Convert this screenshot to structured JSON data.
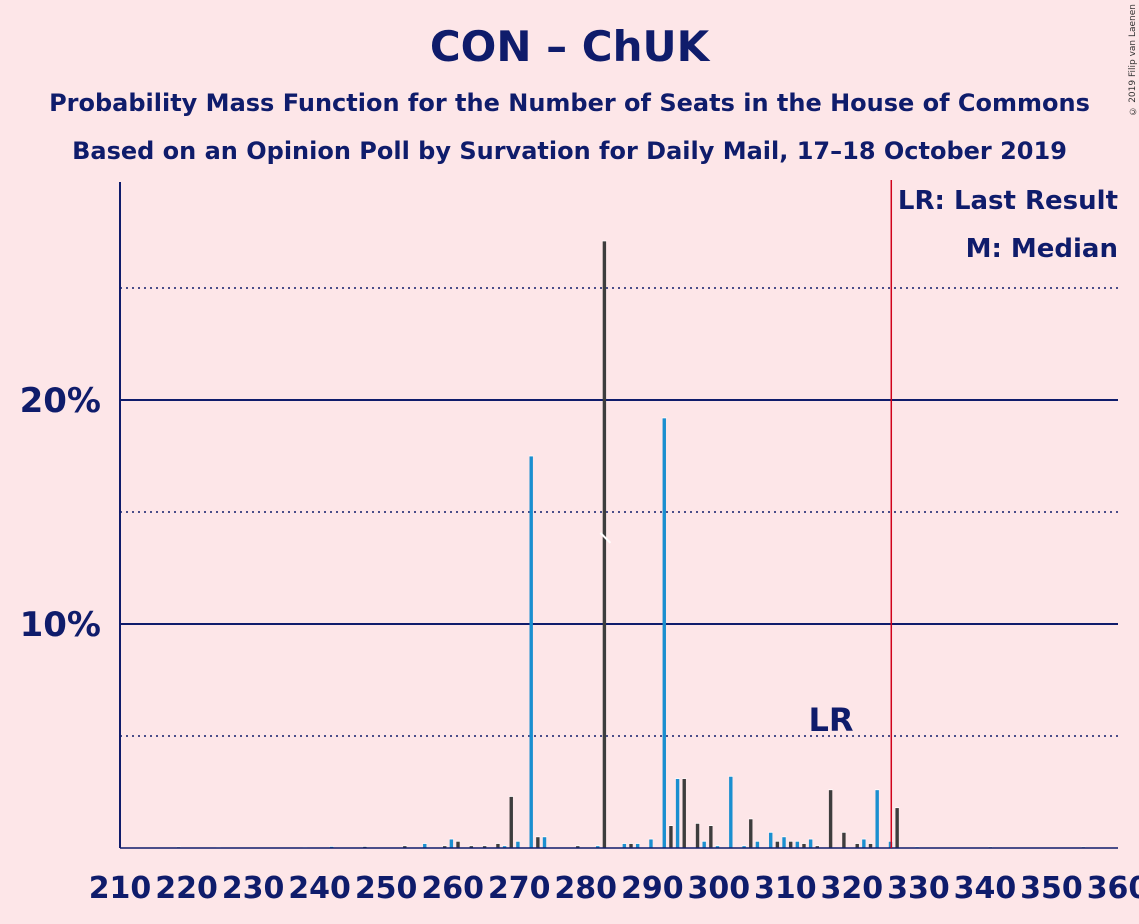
{
  "header": {
    "title": "CON – ChUK",
    "subtitle1": "Probability Mass Function for the Number of Seats in the House of Commons",
    "subtitle2": "Based on an Opinion Poll by Survation for Daily Mail, 17–18 October 2019",
    "copyright": "© 2019 Filip van Laenen"
  },
  "legend": {
    "last_result": "LR: Last Result",
    "median": "M: Median"
  },
  "colors": {
    "background": "#fde6e8",
    "axis": "#0f1c6b",
    "bar_blue": "#1a8fd0",
    "bar_dark": "#3d3d3d",
    "last_result_line": "#d0021b"
  },
  "chart_data": {
    "type": "bar",
    "title": "CON – ChUK",
    "xlabel": "",
    "ylabel": "",
    "xlim": [
      210,
      360
    ],
    "ylim": [
      0,
      30
    ],
    "x_ticks": [
      "210",
      "220",
      "230",
      "240",
      "250",
      "260",
      "270",
      "280",
      "290",
      "300",
      "310",
      "320",
      "330",
      "340",
      "350",
      "360"
    ],
    "y_ticks": [
      "10%",
      "20%"
    ],
    "major_gridlines": [
      10,
      20
    ],
    "minor_gridlines": [
      5,
      15,
      25
    ],
    "median": 283,
    "last_result": 326,
    "last_result_label": "LR",
    "bars": [
      {
        "x": 219,
        "v": 0.05
      },
      {
        "x": 225,
        "v": 0.03
      },
      {
        "x": 238,
        "v": 0.03
      },
      {
        "x": 242,
        "v": 0.07
      },
      {
        "x": 247,
        "v": 0.07
      },
      {
        "x": 253,
        "v": 0.1
      },
      {
        "x": 256,
        "v": 0.2
      },
      {
        "x": 259,
        "v": 0.1
      },
      {
        "x": 260,
        "v": 0.4
      },
      {
        "x": 261,
        "v": 0.3
      },
      {
        "x": 263,
        "v": 0.1
      },
      {
        "x": 265,
        "v": 0.1
      },
      {
        "x": 267,
        "v": 0.2
      },
      {
        "x": 268,
        "v": 0.1
      },
      {
        "x": 269,
        "v": 2.3
      },
      {
        "x": 270,
        "v": 0.3
      },
      {
        "x": 272,
        "v": 17.5
      },
      {
        "x": 273,
        "v": 0.5
      },
      {
        "x": 274,
        "v": 0.5
      },
      {
        "x": 279,
        "v": 0.1
      },
      {
        "x": 282,
        "v": 0.1
      },
      {
        "x": 283,
        "v": 27.1
      },
      {
        "x": 286,
        "v": 0.2
      },
      {
        "x": 287,
        "v": 0.2
      },
      {
        "x": 288,
        "v": 0.2
      },
      {
        "x": 290,
        "v": 0.4
      },
      {
        "x": 292,
        "v": 19.2
      },
      {
        "x": 293,
        "v": 1.0
      },
      {
        "x": 294,
        "v": 3.1
      },
      {
        "x": 295,
        "v": 3.1
      },
      {
        "x": 297,
        "v": 1.1
      },
      {
        "x": 298,
        "v": 0.3
      },
      {
        "x": 299,
        "v": 1.0
      },
      {
        "x": 300,
        "v": 0.1
      },
      {
        "x": 302,
        "v": 3.2
      },
      {
        "x": 304,
        "v": 0.1
      },
      {
        "x": 305,
        "v": 1.3
      },
      {
        "x": 306,
        "v": 0.3
      },
      {
        "x": 308,
        "v": 0.7
      },
      {
        "x": 309,
        "v": 0.3
      },
      {
        "x": 310,
        "v": 0.5
      },
      {
        "x": 311,
        "v": 0.3
      },
      {
        "x": 312,
        "v": 0.3
      },
      {
        "x": 313,
        "v": 0.2
      },
      {
        "x": 314,
        "v": 0.4
      },
      {
        "x": 315,
        "v": 0.1
      },
      {
        "x": 317,
        "v": 2.6
      },
      {
        "x": 319,
        "v": 0.7
      },
      {
        "x": 321,
        "v": 0.2
      },
      {
        "x": 322,
        "v": 0.4
      },
      {
        "x": 323,
        "v": 0.2
      },
      {
        "x": 324,
        "v": 2.6
      },
      {
        "x": 326,
        "v": 0.3
      },
      {
        "x": 327,
        "v": 1.8
      },
      {
        "x": 330,
        "v": 0.05
      },
      {
        "x": 341,
        "v": 0.05
      },
      {
        "x": 355,
        "v": 0.05
      }
    ]
  }
}
